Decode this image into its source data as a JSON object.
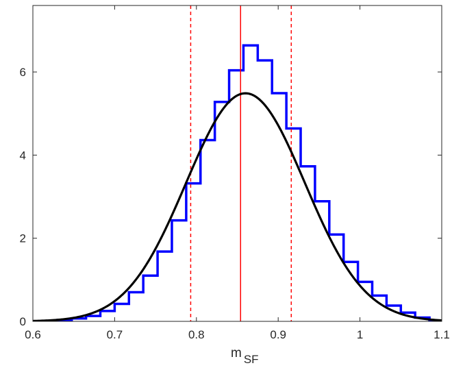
{
  "chart_data": {
    "type": "line",
    "xlabel": {
      "main": "m",
      "sub": "SF"
    },
    "ylabel": "",
    "title": "",
    "xlim": [
      0.6,
      1.1
    ],
    "ylim": [
      0,
      7.6
    ],
    "xticks": [
      {
        "value": 0.6,
        "label": "0.6"
      },
      {
        "value": 0.7,
        "label": "0.7"
      },
      {
        "value": 0.8,
        "label": "0.8"
      },
      {
        "value": 0.9,
        "label": "0.9"
      },
      {
        "value": 1.0,
        "label": "1"
      },
      {
        "value": 1.1,
        "label": "1.1"
      }
    ],
    "yticks": [
      {
        "value": 0,
        "label": "0"
      },
      {
        "value": 2,
        "label": "2"
      },
      {
        "value": 4,
        "label": "4"
      },
      {
        "value": 6,
        "label": "6"
      }
    ],
    "histogram": {
      "color": "#0000ff",
      "bin_edges": [
        0.595,
        0.6125,
        0.63,
        0.6475,
        0.665,
        0.6825,
        0.7,
        0.7175,
        0.735,
        0.7525,
        0.77,
        0.7875,
        0.805,
        0.8225,
        0.84,
        0.8575,
        0.875,
        0.8925,
        0.91,
        0.9275,
        0.945,
        0.9625,
        0.98,
        0.9975,
        1.015,
        1.0325,
        1.05,
        1.0675,
        1.085,
        1.1025
      ],
      "densities": [
        0,
        0.01,
        0.03,
        0.07,
        0.13,
        0.25,
        0.42,
        0.7,
        1.1,
        1.68,
        2.43,
        3.32,
        4.36,
        5.28,
        6.04,
        6.64,
        6.28,
        5.49,
        4.64,
        3.73,
        2.89,
        2.09,
        1.43,
        0.95,
        0.62,
        0.38,
        0.21,
        0.09,
        0.02
      ]
    },
    "fit_curve": {
      "type": "normal",
      "color": "#000000",
      "mean": 0.86,
      "sd": 0.0727
    },
    "vlines": [
      {
        "x": 0.854,
        "color": "#ff0000",
        "style": "solid"
      },
      {
        "x": 0.793,
        "color": "#ff0000",
        "style": "dashed"
      },
      {
        "x": 0.916,
        "color": "#ff0000",
        "style": "dashed"
      }
    ],
    "grid": false,
    "legend": "none"
  }
}
